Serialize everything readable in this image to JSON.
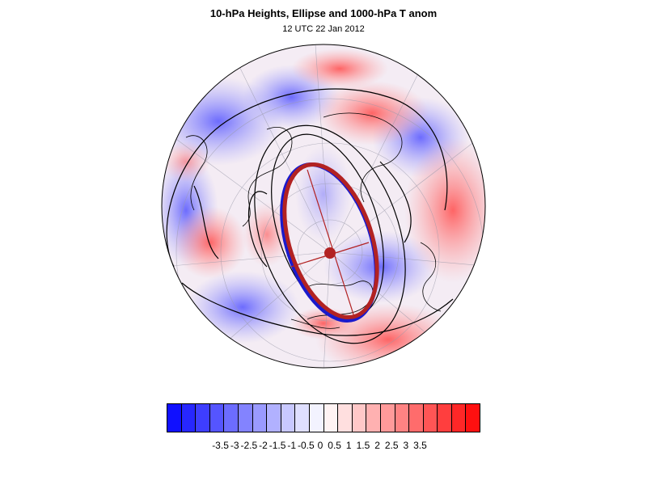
{
  "title": "10-hPa Heights, Ellipse and 1000-hPa T anom",
  "subtitle": "12 UTC 22 Jan 2012",
  "colorbar": {
    "colors": [
      "#1010ff",
      "#2727ff",
      "#3e3eff",
      "#5555ff",
      "#6c6cff",
      "#8383ff",
      "#9a9aff",
      "#b1b1ff",
      "#c8c8ff",
      "#dfdfff",
      "#f3f3ff",
      "#fff3f3",
      "#ffdfdf",
      "#ffc8c8",
      "#ffb1b1",
      "#ff9a9a",
      "#ff8383",
      "#ff6c6c",
      "#ff5555",
      "#ff3e3e",
      "#ff2727",
      "#ff1010"
    ],
    "labels": [
      "-3.5",
      "-3",
      "-2.5",
      "-2",
      "-1.5",
      "-1",
      "-0.5",
      "0",
      "0.5",
      "1",
      "1.5",
      "2",
      "2.5",
      "3",
      "3.5"
    ]
  },
  "map": {
    "projection": "polar stereographic, north pole",
    "anomaly_colors": {
      "cold": "#6666ff",
      "warm": "#ff6666"
    },
    "ellipse_colors": {
      "outer": "#1a1acc",
      "inner": "#b22222",
      "center_dot": "#b22222"
    }
  }
}
